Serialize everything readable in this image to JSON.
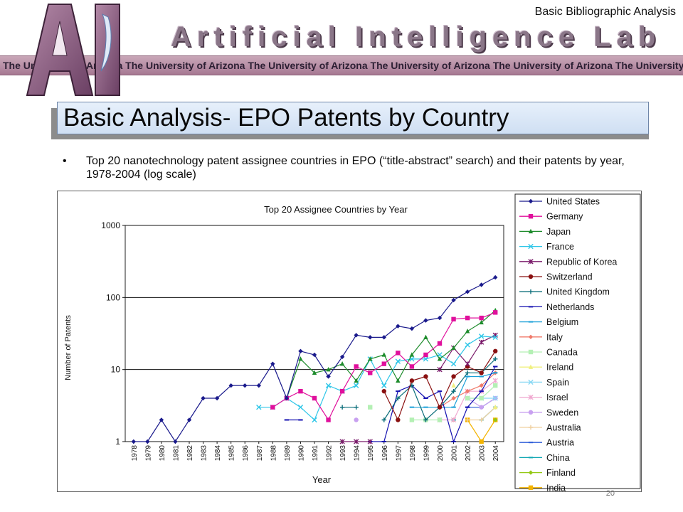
{
  "header": {
    "caption": "Basic Bibliographic Analysis",
    "logo_text": "AI",
    "lab_title": "Artificial Intelligence Lab",
    "banner_text": "The University of Arizona The University of Arizona The University of Arizona The University of Arizona The University of Arizona The University"
  },
  "slide": {
    "title": "Basic Analysis- EPO Patents by Country",
    "bullet": "Top 20 nanotechnology patent assignee countries in EPO (“title-abstract” search) and their patents by year, 1978-2004 (log scale)",
    "page_number": "20"
  },
  "colors": {
    "United States": "#1a1a8c",
    "Germany": "#e0109c",
    "Japan": "#1e8c2c",
    "France": "#2ec6e8",
    "Republic of Korea": "#7a1a6a",
    "Switzerland": "#8a1010",
    "United Kingdom": "#0b6e7a",
    "Netherlands": "#1410b0",
    "Belgium": "#1aa0d8",
    "Italy": "#f07a6a",
    "Canada": "#b4f0b4",
    "Ireland": "#f0f080",
    "Spain": "#88d8f4",
    "Israel": "#f0a8d0",
    "Sweden": "#c8a0f0",
    "Australia": "#f0d0a0",
    "Austria": "#2c5cd8",
    "China": "#14a8b4",
    "Finland": "#94c814",
    "India": "#f4b400"
  },
  "chart_data": {
    "type": "line",
    "title": "Top 20 Assignee Countries by Year",
    "xlabel": "Year",
    "ylabel": "Number of Patents",
    "yscale": "log",
    "ylim": [
      1,
      1000
    ],
    "yticks": [
      "1000",
      "100",
      "10",
      "1"
    ],
    "grid": "horizontal major",
    "legend_position": "right",
    "x": [
      "1978",
      "1979",
      "1980",
      "1981",
      "1982",
      "1983",
      "1984",
      "1985",
      "1986",
      "1987",
      "1988",
      "1989",
      "1990",
      "1991",
      "1992",
      "1993",
      "1994",
      "1995",
      "1996",
      "1997",
      "1998",
      "1999",
      "2000",
      "2001",
      "2002",
      "2003",
      "2004"
    ],
    "series": [
      {
        "name": "United States",
        "marker": "diamond",
        "values": [
          1,
          1,
          2,
          1,
          2,
          4,
          4,
          6,
          6,
          6,
          12,
          4,
          18,
          16,
          8,
          15,
          30,
          28,
          28,
          40,
          37,
          48,
          52,
          92,
          120,
          150,
          190
        ]
      },
      {
        "name": "Germany",
        "marker": "square",
        "values": [
          null,
          null,
          null,
          null,
          null,
          null,
          null,
          null,
          null,
          null,
          3,
          4,
          5,
          4,
          2,
          5,
          11,
          9,
          12,
          17,
          11,
          16,
          23,
          50,
          52,
          52,
          62
        ]
      },
      {
        "name": "Japan",
        "marker": "triangle",
        "values": [
          null,
          null,
          null,
          null,
          null,
          null,
          null,
          null,
          null,
          null,
          null,
          4,
          14,
          9,
          10,
          12,
          7,
          14,
          16,
          7,
          16,
          28,
          14,
          20,
          34,
          45,
          66
        ]
      },
      {
        "name": "France",
        "marker": "x",
        "values": [
          null,
          null,
          null,
          null,
          null,
          null,
          null,
          null,
          null,
          3,
          3,
          4,
          3,
          2,
          6,
          5,
          6,
          14,
          6,
          13,
          14,
          14,
          16,
          12,
          22,
          29,
          28
        ]
      },
      {
        "name": "Republic of Korea",
        "marker": "star",
        "values": [
          null,
          null,
          null,
          null,
          null,
          null,
          null,
          null,
          null,
          null,
          null,
          null,
          null,
          null,
          null,
          1,
          1,
          1,
          null,
          null,
          null,
          null,
          10,
          20,
          12,
          24,
          30
        ]
      },
      {
        "name": "Switzerland",
        "marker": "circle",
        "values": [
          null,
          null,
          null,
          null,
          null,
          null,
          null,
          null,
          null,
          null,
          null,
          null,
          null,
          null,
          null,
          null,
          null,
          null,
          5,
          2,
          7,
          8,
          3,
          8,
          11,
          9,
          18
        ]
      },
      {
        "name": "United Kingdom",
        "marker": "plus",
        "values": [
          null,
          null,
          null,
          null,
          null,
          null,
          null,
          null,
          null,
          null,
          null,
          null,
          null,
          null,
          null,
          3,
          3,
          null,
          2,
          4,
          6,
          2,
          3,
          5,
          9,
          9,
          14
        ]
      },
      {
        "name": "Netherlands",
        "marker": "dash",
        "values": [
          null,
          null,
          null,
          null,
          null,
          null,
          null,
          null,
          null,
          null,
          null,
          2,
          2,
          null,
          null,
          null,
          null,
          1,
          1,
          5,
          6,
          4,
          5,
          1,
          3,
          5,
          11
        ]
      },
      {
        "name": "Belgium",
        "marker": "dash",
        "values": [
          null,
          null,
          null,
          null,
          null,
          null,
          null,
          null,
          null,
          null,
          null,
          null,
          null,
          null,
          null,
          null,
          null,
          null,
          null,
          null,
          3,
          3,
          3,
          3,
          8,
          8,
          9
        ]
      },
      {
        "name": "Italy",
        "marker": "diamond",
        "values": [
          null,
          null,
          null,
          null,
          null,
          null,
          null,
          null,
          null,
          null,
          null,
          null,
          null,
          null,
          null,
          null,
          null,
          null,
          null,
          null,
          null,
          null,
          3,
          4,
          5,
          6,
          9
        ]
      },
      {
        "name": "Canada",
        "marker": "square",
        "values": [
          null,
          null,
          null,
          null,
          null,
          null,
          null,
          null,
          null,
          null,
          null,
          null,
          null,
          null,
          null,
          null,
          null,
          3,
          null,
          null,
          2,
          2,
          2,
          null,
          4,
          4,
          6
        ]
      },
      {
        "name": "Ireland",
        "marker": "triangle",
        "values": [
          null,
          null,
          null,
          null,
          null,
          null,
          null,
          null,
          null,
          null,
          null,
          null,
          null,
          null,
          null,
          null,
          null,
          null,
          null,
          null,
          null,
          null,
          null,
          6,
          null,
          null,
          3
        ]
      },
      {
        "name": "Spain",
        "marker": "x",
        "values": [
          null,
          null,
          null,
          null,
          null,
          null,
          null,
          null,
          null,
          null,
          null,
          null,
          null,
          null,
          null,
          null,
          null,
          null,
          null,
          null,
          null,
          null,
          null,
          null,
          4,
          4,
          4
        ]
      },
      {
        "name": "Israel",
        "marker": "star",
        "values": [
          null,
          null,
          null,
          null,
          null,
          null,
          null,
          null,
          null,
          null,
          null,
          null,
          null,
          null,
          null,
          null,
          null,
          null,
          null,
          null,
          null,
          null,
          2,
          2,
          5,
          5,
          7
        ]
      },
      {
        "name": "Sweden",
        "marker": "circle",
        "values": [
          null,
          null,
          null,
          null,
          null,
          null,
          null,
          null,
          null,
          null,
          null,
          null,
          null,
          null,
          null,
          null,
          2,
          null,
          null,
          null,
          null,
          null,
          2,
          null,
          4,
          3,
          4
        ]
      },
      {
        "name": "Australia",
        "marker": "plus",
        "values": [
          null,
          null,
          null,
          null,
          null,
          null,
          null,
          null,
          null,
          null,
          null,
          null,
          null,
          null,
          null,
          null,
          null,
          null,
          null,
          null,
          null,
          null,
          null,
          null,
          2,
          2,
          3
        ]
      },
      {
        "name": "Austria",
        "marker": "dash",
        "values": [
          null,
          null,
          null,
          null,
          null,
          null,
          null,
          null,
          null,
          null,
          null,
          null,
          null,
          null,
          null,
          null,
          null,
          null,
          null,
          null,
          null,
          null,
          null,
          null,
          3,
          3,
          4
        ]
      },
      {
        "name": "China",
        "marker": "dash",
        "values": [
          null,
          null,
          null,
          null,
          null,
          null,
          null,
          null,
          null,
          null,
          null,
          null,
          null,
          null,
          null,
          null,
          null,
          null,
          null,
          null,
          null,
          null,
          null,
          2,
          null,
          2,
          3
        ]
      },
      {
        "name": "Finland",
        "marker": "diamond",
        "values": [
          null,
          null,
          null,
          null,
          null,
          null,
          null,
          null,
          null,
          null,
          null,
          null,
          null,
          null,
          null,
          null,
          null,
          null,
          null,
          2,
          null,
          null,
          null,
          2,
          null,
          null,
          2
        ]
      },
      {
        "name": "India",
        "marker": "square",
        "values": [
          null,
          null,
          null,
          null,
          null,
          null,
          null,
          null,
          null,
          null,
          null,
          null,
          null,
          null,
          null,
          null,
          null,
          null,
          null,
          null,
          null,
          null,
          null,
          null,
          2,
          1,
          2
        ]
      }
    ]
  }
}
